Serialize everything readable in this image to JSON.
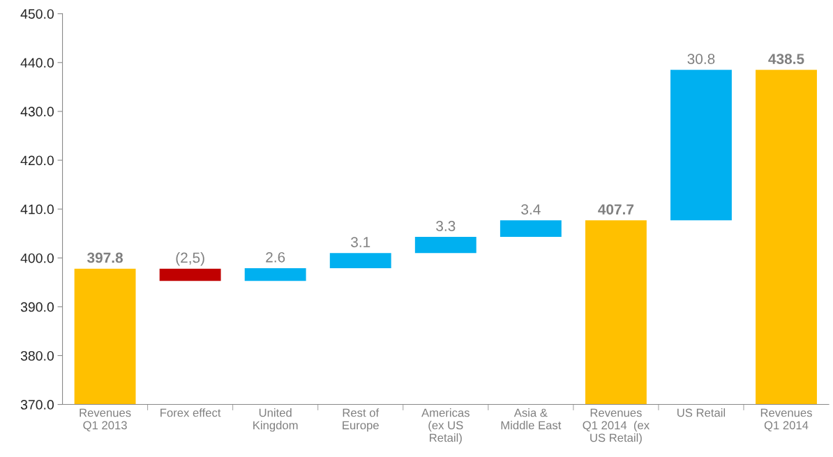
{
  "chart_data": {
    "type": "bar",
    "categories": [
      "Revenues\nQ1 2013",
      "Forex effect",
      "United\nKingdom",
      "Rest of\nEurope",
      "Americas\n(ex US\nRetail)",
      "Asia &\nMiddle East",
      "Revenues\nQ1 2014  (ex\nUS Retail)",
      "US Retail",
      "Revenues\nQ1 2014"
    ],
    "values": [
      397.8,
      -2.5,
      2.6,
      3.1,
      3.3,
      3.4,
      407.7,
      30.8,
      438.5
    ],
    "base": [
      null,
      397.8,
      395.3,
      397.9,
      401.0,
      404.3,
      null,
      407.7,
      null
    ],
    "colors": [
      "#ffc000",
      "#c00000",
      "#00b0f0",
      "#00b0f0",
      "#00b0f0",
      "#00b0f0",
      "#ffc000",
      "#00b0f0",
      "#ffc000"
    ],
    "value_labels": [
      "397.8",
      "(2,5)",
      "2.6",
      "3.1",
      "3.3",
      "3.4",
      "407.7",
      "30.8",
      "438.5"
    ],
    "ylim": [
      370,
      450
    ],
    "yticks": [
      {
        "value": 370,
        "label": "370.0"
      },
      {
        "value": 380,
        "label": "380.0"
      },
      {
        "value": 390,
        "label": "390.0"
      },
      {
        "value": 400,
        "label": "400.0"
      },
      {
        "value": 410,
        "label": "410.0"
      },
      {
        "value": 420,
        "label": "420.0"
      },
      {
        "value": 430,
        "label": "430.0"
      },
      {
        "value": 440,
        "label": "440.0"
      },
      {
        "value": 450,
        "label": "450.0"
      }
    ],
    "grid": false,
    "legend": false
  }
}
